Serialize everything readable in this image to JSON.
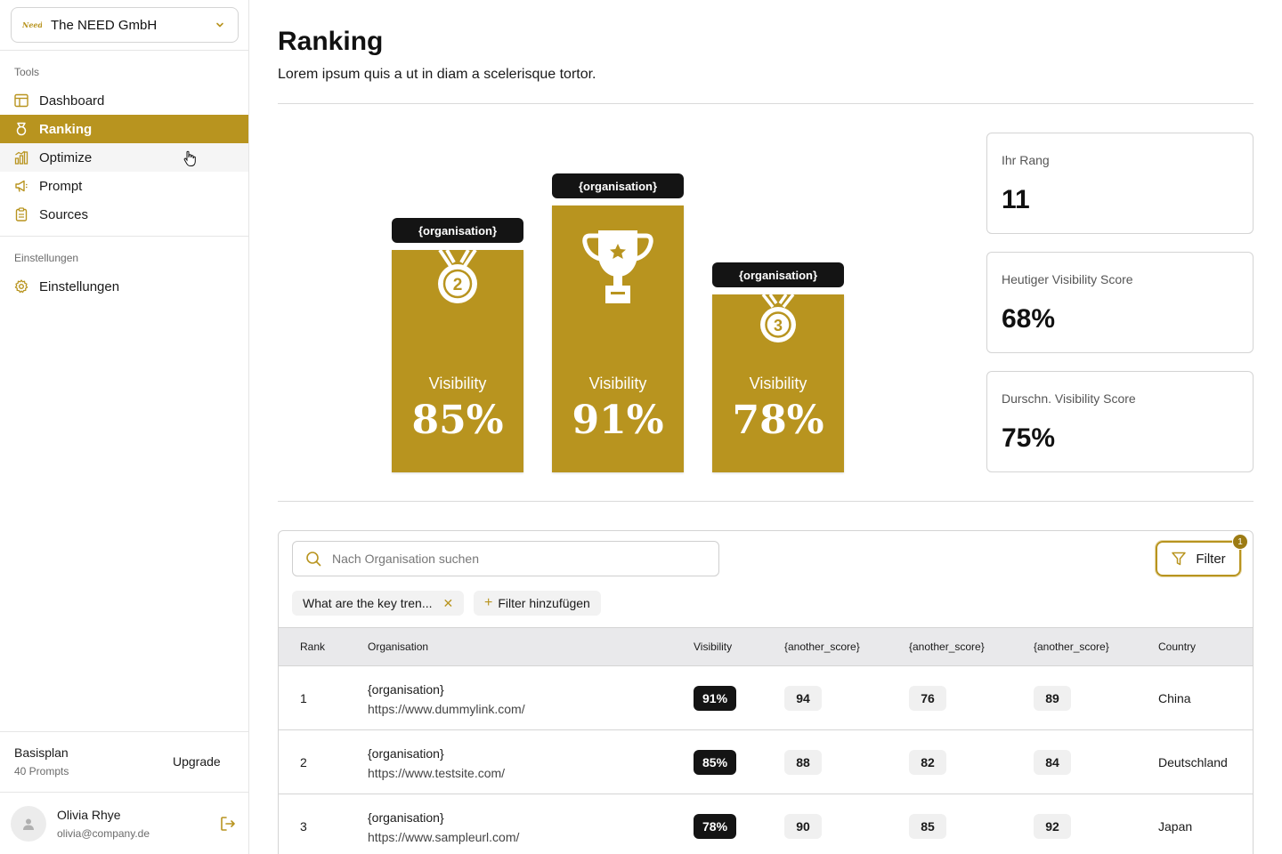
{
  "workspace": {
    "name": "The NEED GmbH",
    "logo_text": "Need"
  },
  "sidebar": {
    "tools_label": "Tools",
    "items": [
      {
        "label": "Dashboard",
        "icon": "layout-icon"
      },
      {
        "label": "Ranking",
        "icon": "medal-icon",
        "active": true
      },
      {
        "label": "Optimize",
        "icon": "bar-chart-icon"
      },
      {
        "label": "Prompt",
        "icon": "megaphone-icon"
      },
      {
        "label": "Sources",
        "icon": "clipboard-icon"
      }
    ],
    "settings_label": "Einstellungen",
    "settings_item": {
      "label": "Einstellungen",
      "icon": "gear-icon"
    },
    "plan": {
      "name": "Basisplan",
      "sub": "40 Prompts",
      "upgrade_label": "Upgrade"
    },
    "user": {
      "name": "Olivia Rhye",
      "email": "olivia@company.de"
    }
  },
  "page": {
    "title": "Ranking",
    "subtitle": "Lorem ipsum quis a ut in diam a scelerisque tortor."
  },
  "podium": [
    {
      "place": 2,
      "label": "{organisation}",
      "vis_label": "Visibility",
      "value": "85%"
    },
    {
      "place": 1,
      "label": "{organisation}",
      "vis_label": "Visibility",
      "value": "91%"
    },
    {
      "place": 3,
      "label": "{organisation}",
      "vis_label": "Visibility",
      "value": "78%"
    }
  ],
  "stats": [
    {
      "label": "Ihr Rang",
      "value": "11"
    },
    {
      "label": "Heutiger Visibility Score",
      "value": "68%"
    },
    {
      "label": "Durschn. Visibility Score",
      "value": "75%"
    }
  ],
  "table": {
    "search_placeholder": "Nach Organisation suchen",
    "filter_label": "Filter",
    "filter_count": "1",
    "active_filter": "What are the key tren...",
    "add_filter_label": "Filter hinzufügen",
    "columns": [
      "Rank",
      "Organisation",
      "Visibility",
      "{another_score}",
      "{another_score}",
      "{another_score}",
      "Country"
    ],
    "rows": [
      {
        "rank": "1",
        "org": "{organisation}",
        "url": "https://www.dummylink.com/",
        "visibility": "91%",
        "s1": "94",
        "s2": "76",
        "s3": "89",
        "country": "China"
      },
      {
        "rank": "2",
        "org": "{organisation}",
        "url": "https://www.testsite.com/",
        "visibility": "85%",
        "s1": "88",
        "s2": "82",
        "s3": "84",
        "country": "Deutschland"
      },
      {
        "rank": "3",
        "org": "{organisation}",
        "url": "https://www.sampleurl.com/",
        "visibility": "78%",
        "s1": "90",
        "s2": "85",
        "s3": "92",
        "country": "Japan"
      }
    ]
  },
  "colors": {
    "accent": "#b8941f",
    "dark": "#141414",
    "border": "#d4d4d4"
  }
}
